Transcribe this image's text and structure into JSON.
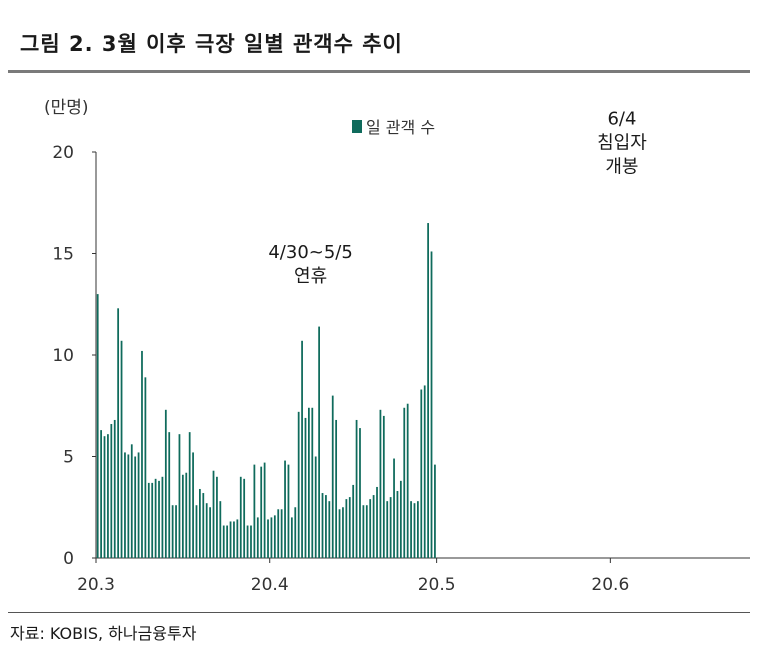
{
  "header": {
    "title": "그림 2. 3월 이후 극장 일별 관객수 추이"
  },
  "footer": {
    "source": "자료: KOBIS, 하나금융투자"
  },
  "colors": {
    "bar": "#0f6b5c",
    "rule": "#7a7a7a"
  },
  "chart_data": {
    "type": "bar",
    "title": "그림 2. 3월 이후 극장 일별 관객수 추이",
    "ylabel": "(만명)",
    "ylim": [
      0,
      20
    ],
    "yticks": [
      0,
      5,
      10,
      15,
      20
    ],
    "xlabel": "",
    "xlim": [
      0,
      192
    ],
    "xticks": [
      {
        "label": "20.3",
        "x": 0
      },
      {
        "label": "20.4",
        "x": 51
      },
      {
        "label": "20.5",
        "x": 100
      },
      {
        "label": "20.6",
        "x": 151
      }
    ],
    "legend": {
      "position": "top-center",
      "entries": [
        "일 관객 수"
      ]
    },
    "series": [
      {
        "name": "일 관객 수",
        "values": [
          13.0,
          6.3,
          6.0,
          6.1,
          6.6,
          6.8,
          12.3,
          10.7,
          5.2,
          5.1,
          5.6,
          5.0,
          5.2,
          10.2,
          8.9,
          3.7,
          3.7,
          3.9,
          3.8,
          4.0,
          7.3,
          6.2,
          2.6,
          2.6,
          6.1,
          4.1,
          4.2,
          6.2,
          5.2,
          2.6,
          3.4,
          3.2,
          2.7,
          2.5,
          4.3,
          4.0,
          2.8,
          1.6,
          1.6,
          1.8,
          1.8,
          1.9,
          4.0,
          3.9,
          1.6,
          1.6,
          4.6,
          2.0,
          4.5,
          4.7,
          1.9,
          2.0,
          2.1,
          2.4,
          2.4,
          4.8,
          4.6,
          2.0,
          2.5,
          7.2,
          10.7,
          6.9,
          7.4,
          7.4,
          5.0,
          11.4,
          3.2,
          3.1,
          2.8,
          8.0,
          6.8,
          2.4,
          2.5,
          2.9,
          3.0,
          3.6,
          6.8,
          6.4,
          2.6,
          2.6,
          2.9,
          3.1,
          3.5,
          7.3,
          7.0,
          2.8,
          3.0,
          4.9,
          3.3,
          3.8,
          7.4,
          7.6,
          2.8,
          2.7,
          2.8,
          8.3,
          8.5,
          16.5,
          15.1,
          4.6
        ]
      }
    ],
    "annotations": [
      {
        "lines": [
          "4/30~5/5",
          "연휴"
        ]
      },
      {
        "lines": [
          "6/4",
          "침입자",
          "개봉"
        ]
      }
    ]
  }
}
